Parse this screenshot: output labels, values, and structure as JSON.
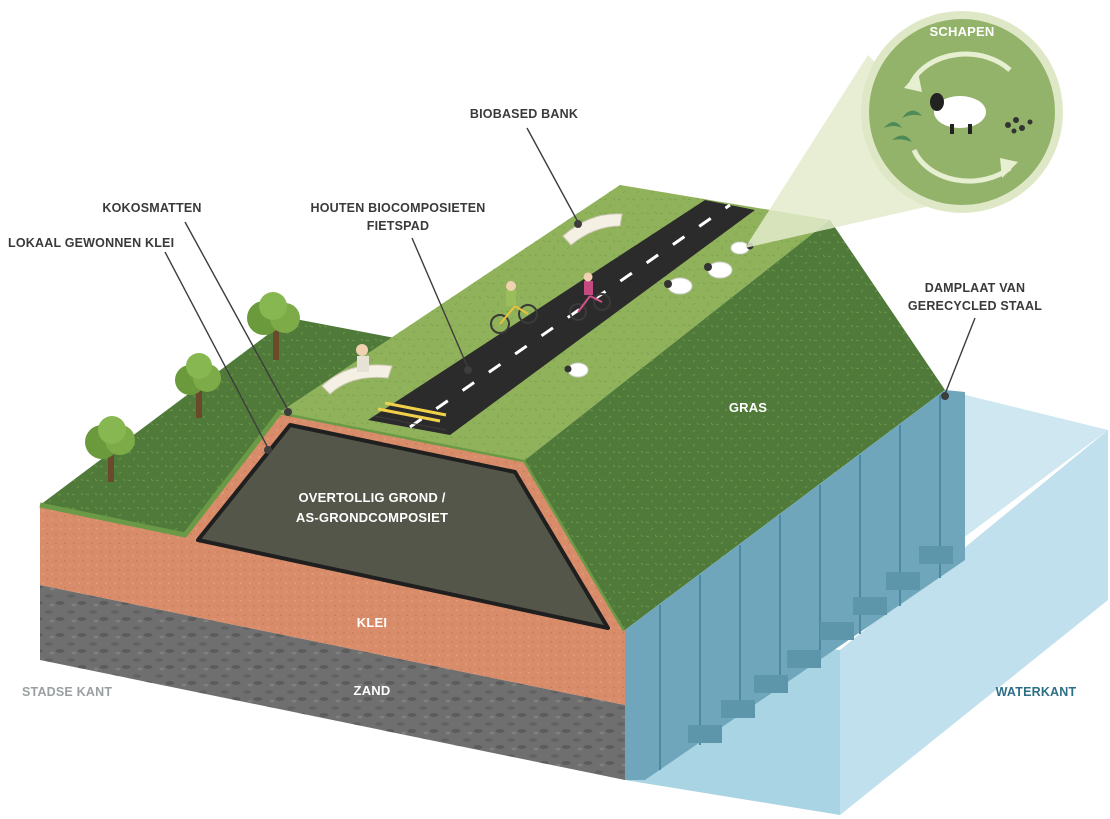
{
  "labels": {
    "schapen": "SCHAPEN",
    "biobased_bank": "BIOBASED BANK",
    "kokosmatten": "KOKOSMATTEN",
    "houten_line1": "HOUTEN BIOCOMPOSIETEN",
    "houten_line2": "FIETSPAD",
    "lokaal_klei": "LOKAAL GEWONNEN KLEI",
    "damplaat_line1": "DAMPLAAT VAN",
    "damplaat_line2": "GERECYCLED STAAL",
    "gras": "GRAS",
    "overtollig_line1": "OVERTOLLIG GROND /",
    "overtollig_line2": "AS-GRONDCOMPOSIET",
    "klei": "KLEI",
    "zand": "ZAND",
    "stadse_kant": "STADSE KANT",
    "waterkant": "WATERKANT"
  },
  "colors": {
    "grass_top": "#8fb25a",
    "grass_dark": "#4f7a3a",
    "clay": "#d98c6a",
    "sand": "#6f6f6f",
    "core": "#55564a",
    "water": "#a9d4e3",
    "steel": "#6fa6bb",
    "road": "#2b2b2b",
    "bubble": "#93b26a"
  },
  "icons": [
    "tree-icon",
    "sheep-icon",
    "cyclist-icon",
    "bench-icon",
    "plant-icon",
    "cycle-arrow-icon"
  ]
}
